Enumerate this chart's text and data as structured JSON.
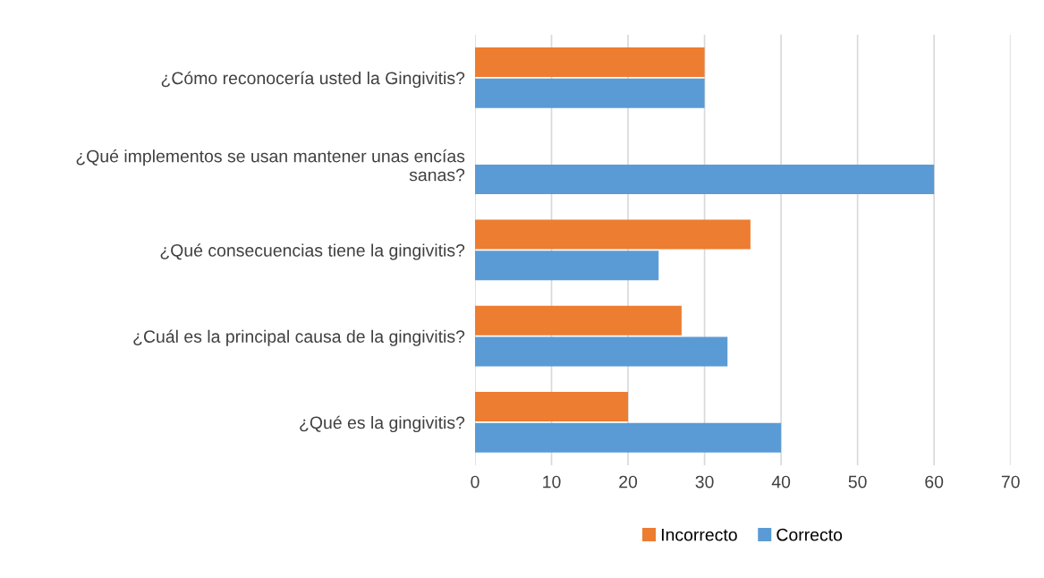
{
  "chart_data": {
    "type": "bar",
    "orientation": "horizontal",
    "categories": [
      "¿Cómo reconocería usted la Gingivitis?",
      "¿Qué implementos se usan mantener unas encías sanas?",
      "¿Qué consecuencias tiene la gingivitis?",
      "¿Cuál es la principal causa de la gingivitis?",
      "¿Qué es la gingivitis?"
    ],
    "series": [
      {
        "name": "Incorrecto",
        "color": "#ed7d31",
        "values": [
          30,
          0,
          36,
          27,
          20
        ]
      },
      {
        "name": "Correcto",
        "color": "#5b9bd5",
        "values": [
          30,
          60,
          24,
          33,
          40
        ]
      }
    ],
    "xlim": [
      0,
      70
    ],
    "xticks": [
      0,
      10,
      20,
      30,
      40,
      50,
      60,
      70
    ],
    "grid": "x",
    "legend": "bottom"
  }
}
